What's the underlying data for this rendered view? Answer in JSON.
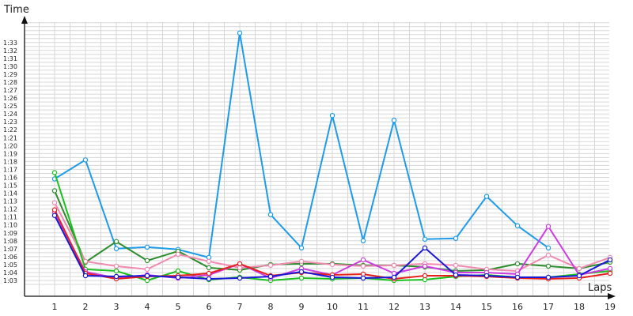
{
  "chart_data": {
    "type": "line",
    "ylabel": "Time",
    "xlabel": "Laps",
    "x": [
      1,
      2,
      3,
      4,
      5,
      6,
      7,
      8,
      9,
      10,
      11,
      12,
      13,
      14,
      15,
      16,
      17,
      18,
      19
    ],
    "x_tick_labels": [
      "1",
      "2",
      "3",
      "4",
      "5",
      "6",
      "7",
      "8",
      "9",
      "10",
      "11",
      "12",
      "13",
      "14",
      "15",
      "16",
      "17",
      "18",
      "19"
    ],
    "y_tick_labels": [
      "1:03",
      "1:04",
      "1:05",
      "1:06",
      "1:07",
      "1:08",
      "1:09",
      "1:10",
      "1:11",
      "1:12",
      "1:13",
      "1:14",
      "1:15",
      "1:16",
      "1:17",
      "1:18",
      "1:19",
      "1:20",
      "1:21",
      "1:22",
      "1:23",
      "1:24",
      "1:25",
      "1:26",
      "1:27",
      "1:28",
      "1:29",
      "1:30",
      "1:31",
      "1:32",
      "1:33"
    ],
    "y_unit": "seconds",
    "ylim": [
      62,
      96
    ],
    "xlim": [
      0,
      20
    ],
    "grid": true,
    "series": [
      {
        "color": "#1e9be8",
        "values": [
          75.8,
          78.2,
          67.0,
          67.2,
          66.9,
          65.9,
          94.2,
          71.3,
          67.1,
          83.8,
          68.0,
          83.2,
          68.2,
          68.3,
          73.6,
          69.9,
          67.1,
          null,
          null
        ]
      },
      {
        "color": "#2a8c2a",
        "values": [
          74.3,
          65.3,
          67.9,
          65.5,
          66.7,
          64.6,
          64.3,
          65.0,
          65.1,
          65.1,
          64.9,
          64.9,
          64.7,
          64.2,
          64.3,
          65.1,
          64.8,
          64.5,
          65.3
        ]
      },
      {
        "color": "#f08ab0",
        "values": [
          72.8,
          65.4,
          64.8,
          64.4,
          66.3,
          65.4,
          64.6,
          64.9,
          65.4,
          65.0,
          64.8,
          64.9,
          65.1,
          64.9,
          64.4,
          64.2,
          66.2,
          64.5,
          65.9
        ]
      },
      {
        "color": "#1cc01c",
        "values": [
          76.6,
          64.4,
          64.2,
          63.0,
          64.2,
          63.1,
          63.4,
          63.0,
          63.3,
          63.2,
          63.3,
          63.0,
          63.1,
          63.5,
          63.7,
          63.4,
          63.4,
          63.8,
          64.2
        ]
      },
      {
        "color": "#cc3ce0",
        "values": [
          71.6,
          64.1,
          63.3,
          63.7,
          63.3,
          63.7,
          65.1,
          63.3,
          64.5,
          63.7,
          65.6,
          63.9,
          64.8,
          64.0,
          64.0,
          63.8,
          69.8,
          63.7,
          64.5
        ]
      },
      {
        "color": "#e8201c",
        "values": [
          71.9,
          63.9,
          63.2,
          63.5,
          63.6,
          63.9,
          65.1,
          63.6,
          64.0,
          63.7,
          63.8,
          63.2,
          63.6,
          63.6,
          63.5,
          63.3,
          63.2,
          63.3,
          63.9
        ]
      },
      {
        "color": "#1818d8",
        "values": [
          71.2,
          63.6,
          63.5,
          63.6,
          63.4,
          63.2,
          63.3,
          63.5,
          64.1,
          63.4,
          63.3,
          63.4,
          67.1,
          63.7,
          63.6,
          63.4,
          63.4,
          63.6,
          65.6
        ]
      }
    ]
  }
}
